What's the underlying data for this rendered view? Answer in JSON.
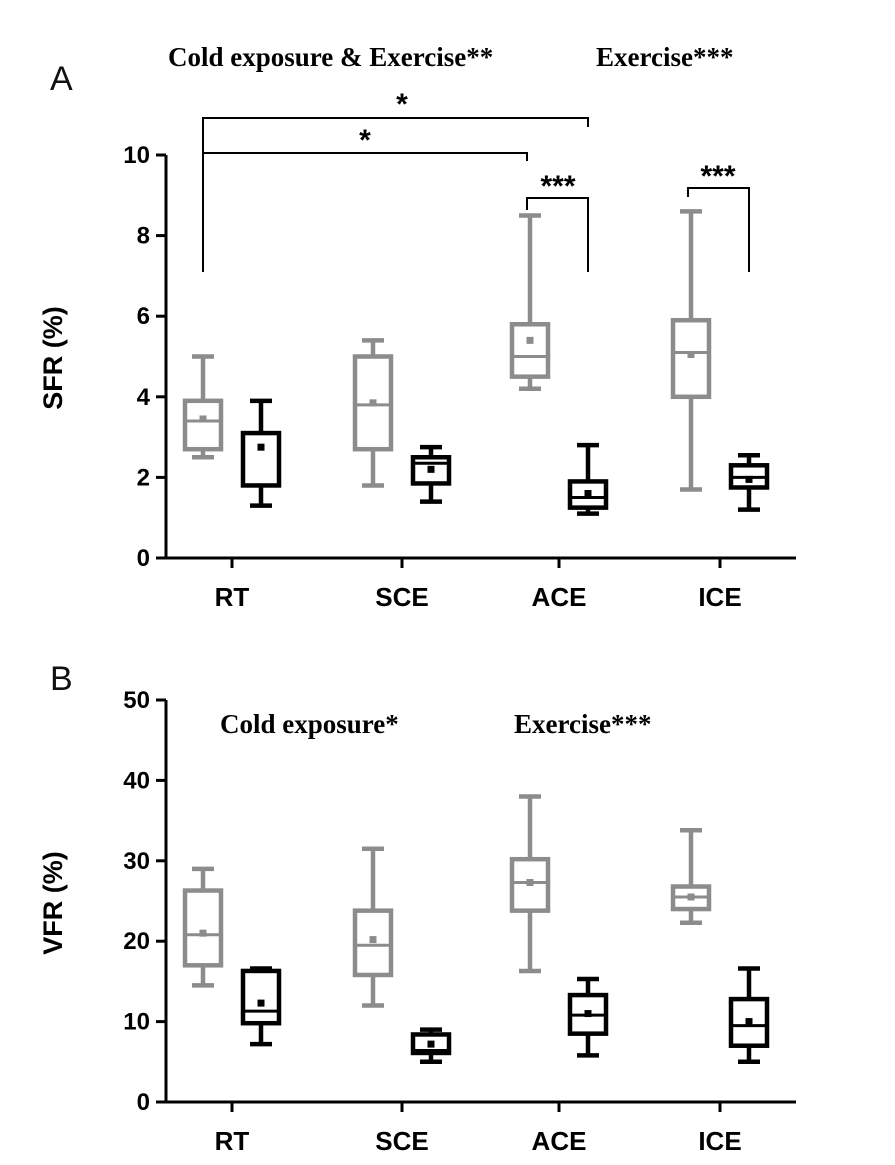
{
  "chart_data": [
    {
      "type": "box",
      "panel_label": "A",
      "annotations": [
        "Cold exposure & Exercise**",
        "Exercise***"
      ],
      "ylabel": "SFR (%)",
      "xlabel": "",
      "ylim": [
        0,
        10
      ],
      "yticks": [
        0,
        2,
        4,
        6,
        8,
        10
      ],
      "categories": [
        "RT",
        "SCE",
        "ACE",
        "ICE"
      ],
      "colors": {
        "series_1": "#8c8c8c",
        "series_2": "#000000"
      },
      "series": [
        {
          "name": "",
          "color": "#8c8c8c",
          "boxes": [
            {
              "min": 2.5,
              "q1": 2.7,
              "median": 3.4,
              "q3": 3.9,
              "max": 5.0,
              "mean": 3.45
            },
            {
              "min": 1.8,
              "q1": 2.7,
              "median": 3.8,
              "q3": 5.0,
              "max": 5.4,
              "mean": 3.85
            },
            {
              "min": 4.2,
              "q1": 4.5,
              "median": 5.0,
              "q3": 5.8,
              "max": 8.5,
              "mean": 5.4
            },
            {
              "min": 1.7,
              "q1": 4.0,
              "median": 5.1,
              "q3": 5.9,
              "max": 8.6,
              "mean": 5.05
            }
          ]
        },
        {
          "name": "",
          "color": "#000000",
          "boxes": [
            {
              "min": 1.3,
              "q1": 1.8,
              "median": 3.1,
              "q3": 3.1,
              "max": 3.9,
              "mean": 2.75
            },
            {
              "min": 1.4,
              "q1": 1.85,
              "median": 2.35,
              "q3": 2.5,
              "max": 2.75,
              "mean": 2.2
            },
            {
              "min": 1.1,
              "q1": 1.25,
              "median": 1.5,
              "q3": 1.9,
              "max": 2.8,
              "mean": 1.6
            },
            {
              "min": 1.2,
              "q1": 1.75,
              "median": 2.0,
              "q3": 2.3,
              "max": 2.55,
              "mean": 1.95
            }
          ]
        }
      ],
      "significance": [
        {
          "label": "*",
          "from": "RT",
          "to": "ACE",
          "from_series": 1,
          "to_series": 2
        },
        {
          "label": "*",
          "from": "RT",
          "to": "ACE",
          "from_series": 1,
          "to_series": 1
        },
        {
          "label": "***",
          "from": "ACE",
          "to": "ACE",
          "from_series": 1,
          "to_series": 2
        },
        {
          "label": "***",
          "from": "ICE",
          "to": "ICE",
          "from_series": 1,
          "to_series": 2
        }
      ]
    },
    {
      "type": "box",
      "panel_label": "B",
      "annotations": [
        "Cold exposure*",
        "Exercise***"
      ],
      "ylabel": "VFR (%)",
      "xlabel": "",
      "ylim": [
        0,
        50
      ],
      "yticks": [
        0,
        10,
        20,
        30,
        40,
        50
      ],
      "categories": [
        "RT",
        "SCE",
        "ACE",
        "ICE"
      ],
      "colors": {
        "series_1": "#8c8c8c",
        "series_2": "#000000"
      },
      "series": [
        {
          "name": "",
          "color": "#8c8c8c",
          "boxes": [
            {
              "min": 14.5,
              "q1": 17.0,
              "median": 20.8,
              "q3": 26.3,
              "max": 29.0,
              "mean": 21.0
            },
            {
              "min": 12.0,
              "q1": 15.8,
              "median": 19.5,
              "q3": 23.8,
              "max": 31.5,
              "mean": 20.2
            },
            {
              "min": 16.3,
              "q1": 23.8,
              "median": 27.3,
              "q3": 30.2,
              "max": 38.0,
              "mean": 27.3
            },
            {
              "min": 22.3,
              "q1": 24.0,
              "median": 25.5,
              "q3": 26.8,
              "max": 33.8,
              "mean": 25.5
            }
          ]
        },
        {
          "name": "",
          "color": "#000000",
          "boxes": [
            {
              "min": 7.2,
              "q1": 9.8,
              "median": 11.3,
              "q3": 16.3,
              "max": 16.6,
              "mean": 12.3
            },
            {
              "min": 5.0,
              "q1": 6.1,
              "median": 6.4,
              "q3": 8.4,
              "max": 9.0,
              "mean": 7.2
            },
            {
              "min": 5.8,
              "q1": 8.5,
              "median": 10.8,
              "q3": 13.3,
              "max": 15.3,
              "mean": 11.0
            },
            {
              "min": 5.0,
              "q1": 7.0,
              "median": 9.5,
              "q3": 12.8,
              "max": 16.6,
              "mean": 10.0
            }
          ]
        }
      ],
      "significance": []
    }
  ]
}
